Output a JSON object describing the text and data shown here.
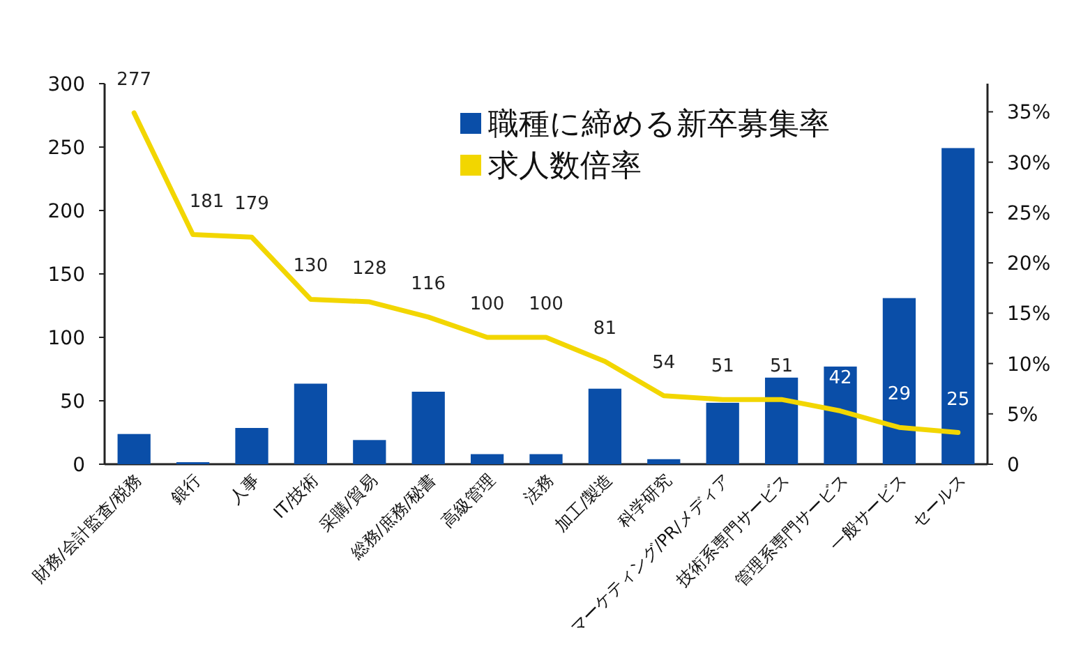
{
  "chart_data": {
    "type": "bar",
    "categories": [
      "財務/会計監査/税務",
      "銀行",
      "人事",
      "IT/技術",
      "采購/貿易",
      "総務/庶務/秘書",
      "高級管理",
      "法務",
      "加工/製造",
      "科学研究",
      "マーケティング/PR/メディア",
      "技術系専門サービス",
      "管理系専門サービス",
      "一般サービス",
      "セールス"
    ],
    "series": [
      {
        "name": "職種に締める新卒募集率",
        "axis": "y2",
        "color": "#0a4ea8",
        "values": [
          3.0,
          0.2,
          3.6,
          8.0,
          2.4,
          7.2,
          1.0,
          1.0,
          7.5,
          0.5,
          6.1,
          8.6,
          9.7,
          16.5,
          31.4
        ]
      },
      {
        "name": "求人数倍率",
        "type": "line",
        "color": "#f2d600",
        "values": [
          277,
          181,
          179,
          130,
          128,
          116,
          100,
          100,
          81,
          54,
          51,
          51,
          42,
          29,
          25
        ],
        "value_labels": [
          "277",
          "181",
          "179",
          "130",
          "128",
          "116",
          "100",
          "100",
          "81",
          "54",
          "51",
          "51",
          "42",
          "29",
          "25"
        ]
      }
    ],
    "ylim": [
      0,
      300
    ],
    "yticks": [
      0,
      50,
      100,
      150,
      200,
      250,
      300
    ],
    "y2lim": [
      0,
      37.8
    ],
    "y2ticks": [
      {
        "value": 0,
        "label": "0"
      },
      {
        "value": 5,
        "label": "5%"
      },
      {
        "value": 10,
        "label": "10%"
      },
      {
        "value": 15,
        "label": "15%"
      },
      {
        "value": 20,
        "label": "20%"
      },
      {
        "value": 25,
        "label": "25%"
      },
      {
        "value": 30,
        "label": "30%"
      },
      {
        "value": 35,
        "label": "35%"
      }
    ],
    "legend": "top right",
    "grid": false,
    "marker": "none",
    "line_style": "solid"
  }
}
